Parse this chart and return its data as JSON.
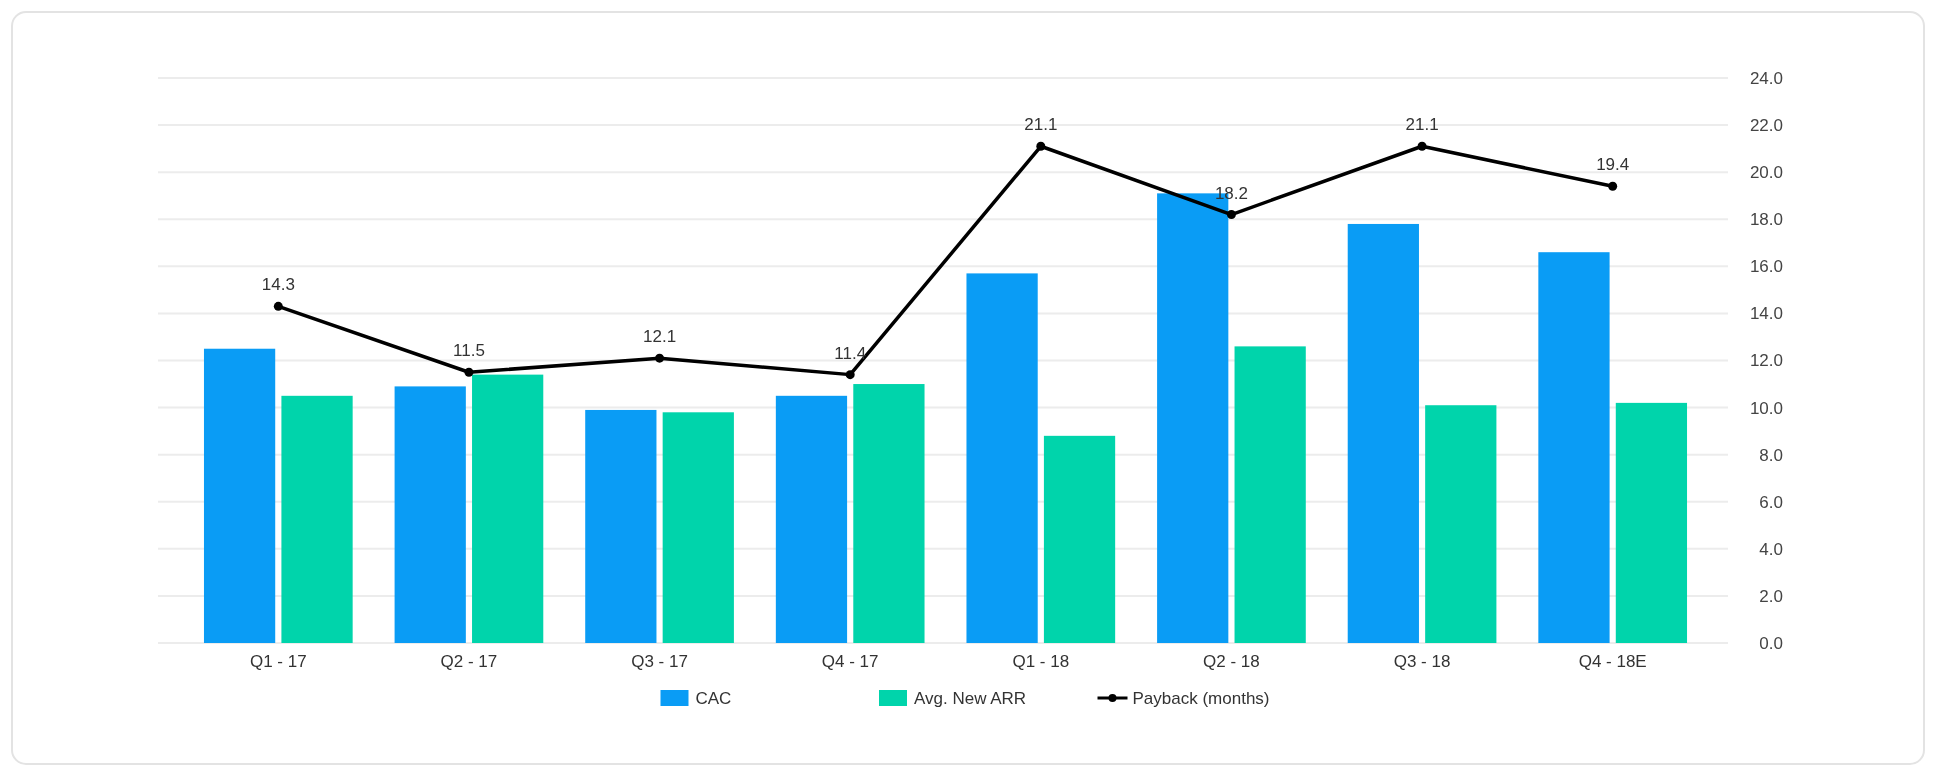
{
  "chart_data": {
    "type": "bar",
    "categories": [
      "Q1 - 17",
      "Q2 - 17",
      "Q3 - 17",
      "Q4 - 17",
      "Q1 - 18",
      "Q2 - 18",
      "Q3 - 18",
      "Q4 - 18E"
    ],
    "series": [
      {
        "name": "CAC",
        "color": "#0a9cf5",
        "values": [
          12.5,
          10.9,
          9.9,
          10.5,
          15.7,
          19.1,
          17.8,
          16.6
        ]
      },
      {
        "name": "Avg. New ARR",
        "color": "#00d4ab",
        "values": [
          10.5,
          11.4,
          9.8,
          11.0,
          8.8,
          12.6,
          10.1,
          10.2
        ]
      },
      {
        "name": "Payback (months)",
        "type": "line",
        "color": "#000000",
        "marker": "circle",
        "values": [
          14.3,
          11.5,
          12.1,
          11.4,
          21.1,
          18.2,
          21.1,
          19.4
        ],
        "value_labels": [
          "14.3",
          "11.5",
          "12.1",
          "11.4",
          "21.1",
          "18.2",
          "21.1",
          "19.4"
        ]
      }
    ],
    "ylim": [
      0,
      24
    ],
    "yticks": [
      {
        "value": 0,
        "label": "0.0"
      },
      {
        "value": 2,
        "label": "2.0"
      },
      {
        "value": 4,
        "label": "4.0"
      },
      {
        "value": 6,
        "label": "6.0"
      },
      {
        "value": 8,
        "label": "8.0"
      },
      {
        "value": 10,
        "label": "10.0"
      },
      {
        "value": 12,
        "label": "12.0"
      },
      {
        "value": 14,
        "label": "14.0"
      },
      {
        "value": 16,
        "label": "16.0"
      },
      {
        "value": 18,
        "label": "18.0"
      },
      {
        "value": 20,
        "label": "20.0"
      },
      {
        "value": 22,
        "label": "22.0"
      },
      {
        "value": 24,
        "label": "24.0"
      }
    ],
    "grid": "y",
    "legend": "bottom"
  }
}
